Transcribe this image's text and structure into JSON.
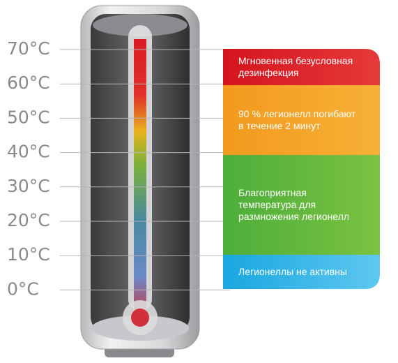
{
  "scale": {
    "labels": [
      "70°C",
      "60°C",
      "50°C",
      "40°C",
      "30°C",
      "20°C",
      "10°C",
      "0°C"
    ]
  },
  "zones": [
    {
      "lines": [
        "Мгновенная безусловная",
        "дезинфекция"
      ]
    },
    {
      "lines": [
        "90 % легионелл погибают",
        "в течение 2 минут"
      ]
    },
    {
      "lines": [
        "Благоприятная",
        "температура для",
        "размножения легионелл"
      ]
    },
    {
      "lines": [
        "Легионеллы не активны"
      ]
    }
  ]
}
